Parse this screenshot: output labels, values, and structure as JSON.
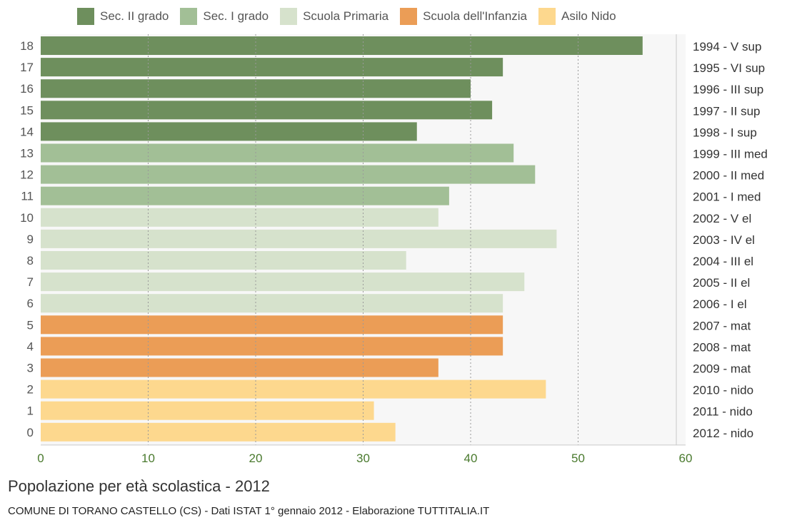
{
  "chart_data": {
    "type": "bar",
    "orientation": "horizontal",
    "title": "Popolazione per età scolastica - 2012",
    "subtitle": "COMUNE DI TORANO CASTELLO (CS) - Dati ISTAT 1° gennaio 2012 - Elaborazione TUTTITALIA.IT",
    "xlim": [
      0,
      60
    ],
    "xticks": [
      "0",
      "10",
      "20",
      "30",
      "40",
      "50",
      "60"
    ],
    "grid": true,
    "legend_position": "top",
    "legend": [
      {
        "name": "Sec. II grado",
        "color": "#6e8f5d"
      },
      {
        "name": "Sec. I grado",
        "color": "#a2bf96"
      },
      {
        "name": "Scuola Primaria",
        "color": "#d6e2cc"
      },
      {
        "name": "Scuola dell'Infanzia",
        "color": "#eb9d56"
      },
      {
        "name": "Asilo Nido",
        "color": "#fdd88e"
      }
    ],
    "bars": [
      {
        "age": "18",
        "label": "1994 - V sup",
        "value": 56,
        "group": 0
      },
      {
        "age": "17",
        "label": "1995 - VI sup",
        "value": 43,
        "group": 0
      },
      {
        "age": "16",
        "label": "1996 - III sup",
        "value": 40,
        "group": 0
      },
      {
        "age": "15",
        "label": "1997 - II sup",
        "value": 42,
        "group": 0
      },
      {
        "age": "14",
        "label": "1998 - I sup",
        "value": 35,
        "group": 0
      },
      {
        "age": "13",
        "label": "1999 - III med",
        "value": 44,
        "group": 1
      },
      {
        "age": "12",
        "label": "2000 - II med",
        "value": 46,
        "group": 1
      },
      {
        "age": "11",
        "label": "2001 - I med",
        "value": 38,
        "group": 1
      },
      {
        "age": "10",
        "label": "2002 - V el",
        "value": 37,
        "group": 2
      },
      {
        "age": "9",
        "label": "2003 - IV el",
        "value": 48,
        "group": 2
      },
      {
        "age": "8",
        "label": "2004 - III el",
        "value": 34,
        "group": 2
      },
      {
        "age": "7",
        "label": "2005 - II el",
        "value": 45,
        "group": 2
      },
      {
        "age": "6",
        "label": "2006 - I el",
        "value": 43,
        "group": 2
      },
      {
        "age": "5",
        "label": "2007 - mat",
        "value": 43,
        "group": 3
      },
      {
        "age": "4",
        "label": "2008 - mat",
        "value": 43,
        "group": 3
      },
      {
        "age": "3",
        "label": "2009 - mat",
        "value": 37,
        "group": 3
      },
      {
        "age": "2",
        "label": "2010 - nido",
        "value": 47,
        "group": 4
      },
      {
        "age": "1",
        "label": "2011 - nido",
        "value": 31,
        "group": 4
      },
      {
        "age": "0",
        "label": "2012 - nido",
        "value": 33,
        "group": 4
      }
    ]
  }
}
